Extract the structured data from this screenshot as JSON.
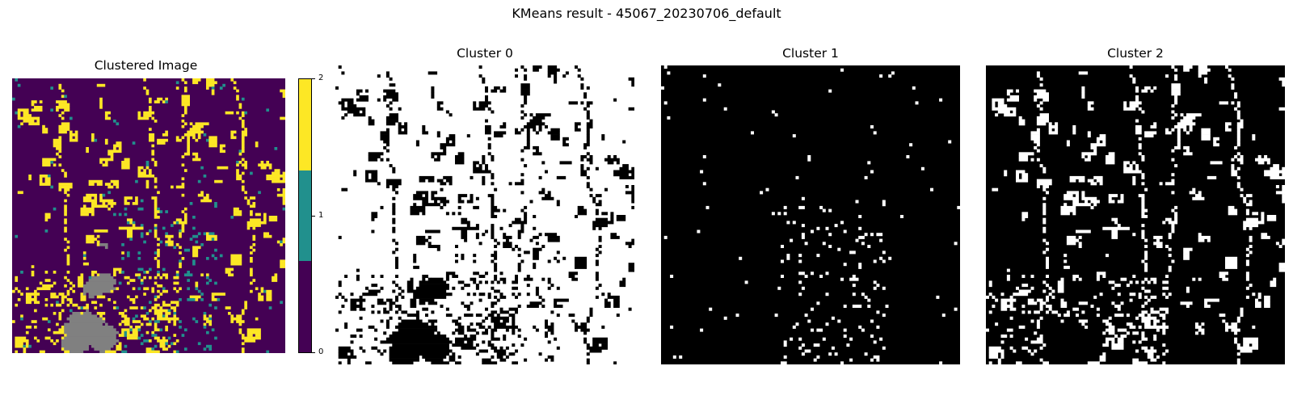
{
  "figure": {
    "title": "KMeans result - 45067_20230706_default"
  },
  "chart_data": [
    {
      "type": "heatmap",
      "title": "Clustered Image",
      "colormap": "viridis",
      "categories": [
        0,
        1,
        2
      ],
      "colors": {
        "0": "#440154",
        "1": "#21908d",
        "2": "#fde725",
        "nodata": "#808080"
      },
      "colorbar": {
        "ticks": [
          "0",
          "1",
          "2"
        ],
        "range": [
          0,
          2
        ]
      },
      "axes": "off"
    },
    {
      "type": "heatmap",
      "title": "Cluster 0",
      "colormap": "binary mask (white = member, black = non-member)",
      "axes": "off"
    },
    {
      "type": "heatmap",
      "title": "Cluster 1",
      "colormap": "binary mask (white = member, black = non-member)",
      "axes": "off"
    },
    {
      "type": "heatmap",
      "title": "Cluster 2",
      "colormap": "binary mask (white = member, black = non-member)",
      "axes": "off"
    }
  ]
}
